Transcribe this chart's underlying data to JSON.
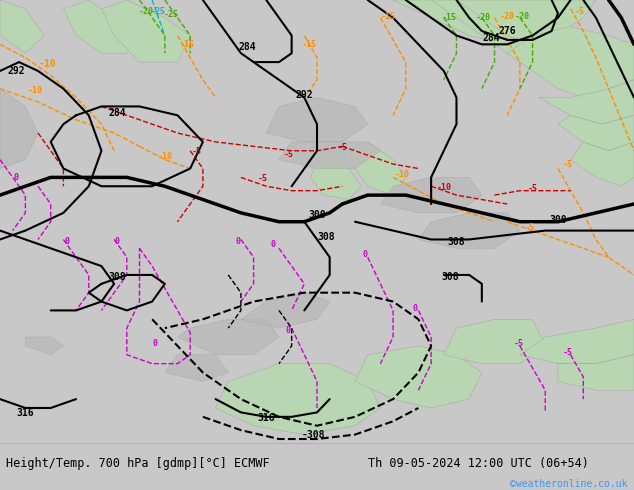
{
  "title_left": "Height/Temp. 700 hPa [gdmp][°C] ECMWF",
  "title_right": "Th 09-05-2024 12:00 UTC (06+54)",
  "credit": "©weatheronline.co.uk",
  "bg_color": "#c8c8c8",
  "land_green": "#b8d8b0",
  "land_green2": "#c8e0b8",
  "sea_color": "#d0d0d0",
  "bottom_bar_color": "#e0e0e0",
  "black": "#000000",
  "orange": "#FF8C00",
  "red": "#CC0000",
  "magenta": "#CC00CC",
  "green_c": "#44AA00",
  "cyan_c": "#00BBBB",
  "fig_width": 6.34,
  "fig_height": 4.9,
  "dpi": 100,
  "fs": 7,
  "fs_small": 6,
  "title_fontsize": 8.5,
  "credit_fontsize": 7,
  "credit_color": "#3399FF",
  "lw_thin": 1.0,
  "lw_med": 1.5,
  "lw_thick": 2.5
}
